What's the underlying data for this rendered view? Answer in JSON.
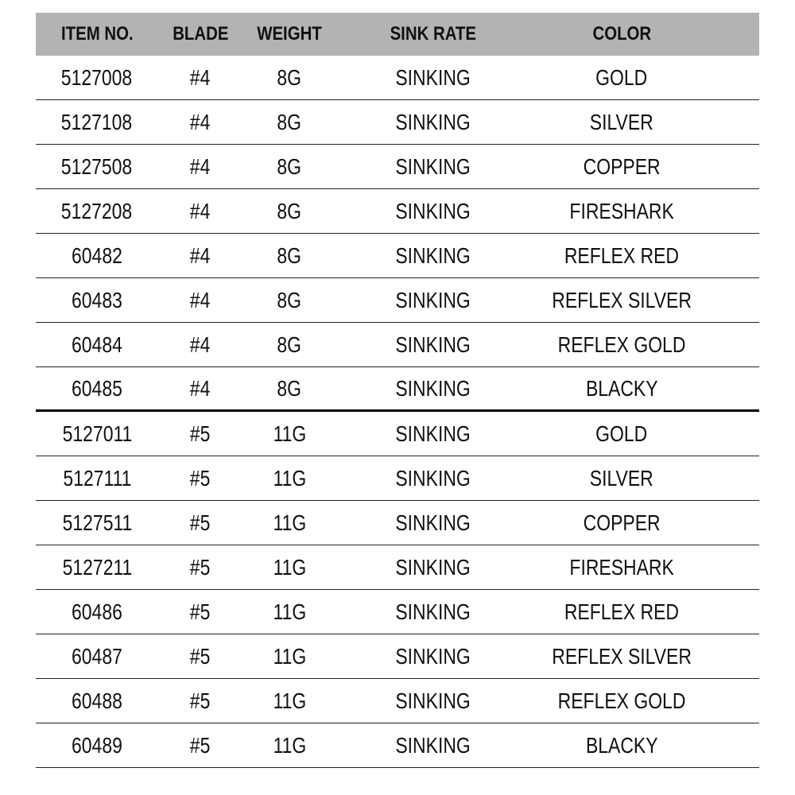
{
  "headers": [
    "ITEM NO.",
    "BLADE",
    "WEIGHT",
    "SINK RATE",
    "COLOR"
  ],
  "rows": [
    [
      "5127008",
      "#4",
      "8G",
      "SINKING",
      "GOLD"
    ],
    [
      "5127108",
      "#4",
      "8G",
      "SINKING",
      "SILVER"
    ],
    [
      "5127508",
      "#4",
      "8G",
      "SINKING",
      "COPPER"
    ],
    [
      "5127208",
      "#4",
      "8G",
      "SINKING",
      "FIRESHARK"
    ],
    [
      "60482",
      "#4",
      "8G",
      "SINKING",
      "REFLEX RED"
    ],
    [
      "60483",
      "#4",
      "8G",
      "SINKING",
      "REFLEX SILVER"
    ],
    [
      "60484",
      "#4",
      "8G",
      "SINKING",
      "REFLEX GOLD"
    ],
    [
      "60485",
      "#4",
      "8G",
      "SINKING",
      "BLACKY"
    ],
    [
      "5127011",
      "#5",
      "11G",
      "SINKING",
      "GOLD"
    ],
    [
      "5127111",
      "#5",
      "11G",
      "SINKING",
      "SILVER"
    ],
    [
      "5127511",
      "#5",
      "11G",
      "SINKING",
      "COPPER"
    ],
    [
      "5127211",
      "#5",
      "11G",
      "SINKING",
      "FIRESHARK"
    ],
    [
      "60486",
      "#5",
      "11G",
      "SINKING",
      "REFLEX RED"
    ],
    [
      "60487",
      "#5",
      "11G",
      "SINKING",
      "REFLEX SILVER"
    ],
    [
      "60488",
      "#5",
      "11G",
      "SINKING",
      "REFLEX GOLD"
    ],
    [
      "60489",
      "#5",
      "11G",
      "SINKING",
      "BLACKY"
    ]
  ],
  "colors": {
    "header_bg": "#b3b3b3"
  }
}
